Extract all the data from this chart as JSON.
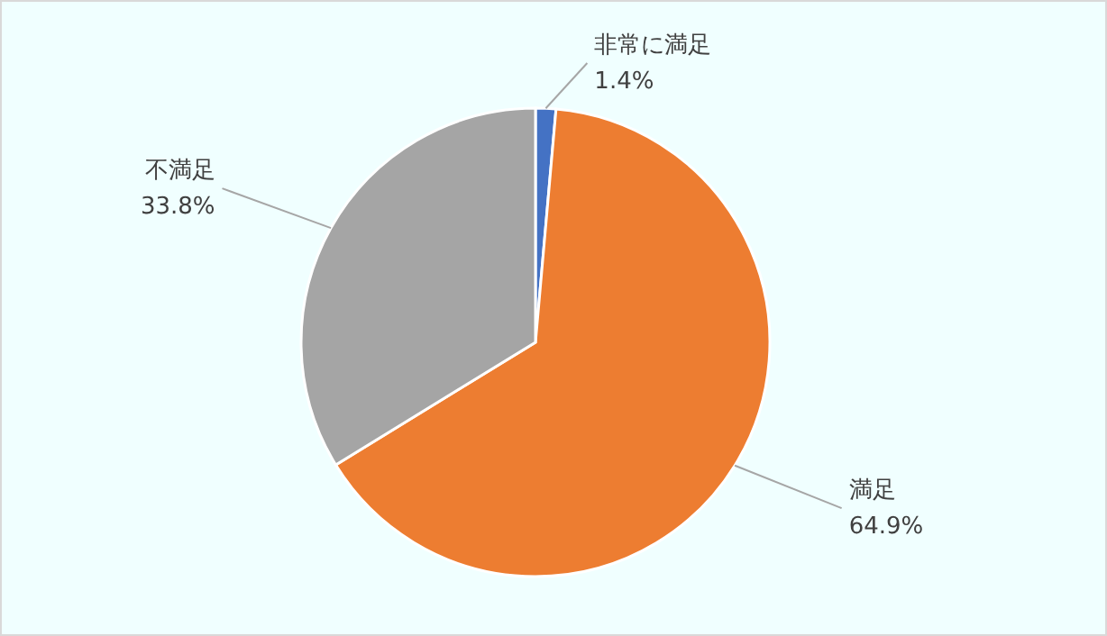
{
  "chart_data": {
    "type": "pie",
    "categories": [
      "非常に満足",
      "満足",
      "不満足"
    ],
    "values": [
      1.4,
      64.9,
      33.8
    ],
    "colors": [
      "#4472c4",
      "#ed7d31",
      "#a5a5a5"
    ],
    "value_labels": [
      "1.4%",
      "64.9%",
      "33.8%"
    ],
    "legend": false
  }
}
